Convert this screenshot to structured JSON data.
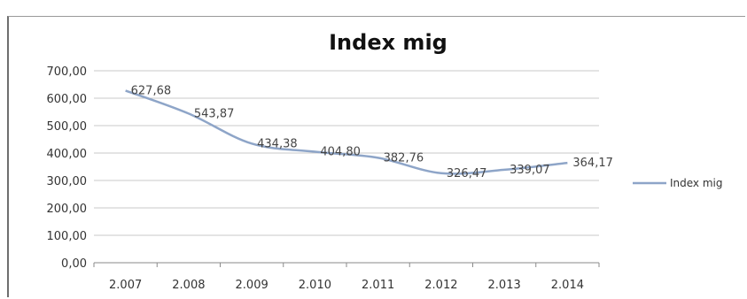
{
  "chart_data": {
    "type": "line",
    "title": "Index mig",
    "xlabel": "",
    "ylabel": "",
    "categories": [
      "2.007",
      "2.008",
      "2.009",
      "2.010",
      "2.011",
      "2.012",
      "2.013",
      "2.014"
    ],
    "series": [
      {
        "name": "Index mig",
        "values": [
          627.68,
          543.87,
          434.38,
          404.8,
          382.76,
          326.47,
          339.07,
          364.17
        ],
        "labels": [
          "627,68",
          "543,87",
          "434,38",
          "404,80",
          "382,76",
          "326,47",
          "339,07",
          "364,17"
        ],
        "color": "#8ea5c8"
      }
    ],
    "ylim": [
      0,
      700
    ],
    "yticks": [
      "0,00",
      "100,00",
      "200,00",
      "300,00",
      "400,00",
      "500,00",
      "600,00",
      "700,00"
    ],
    "grid": true,
    "legend": "right"
  }
}
